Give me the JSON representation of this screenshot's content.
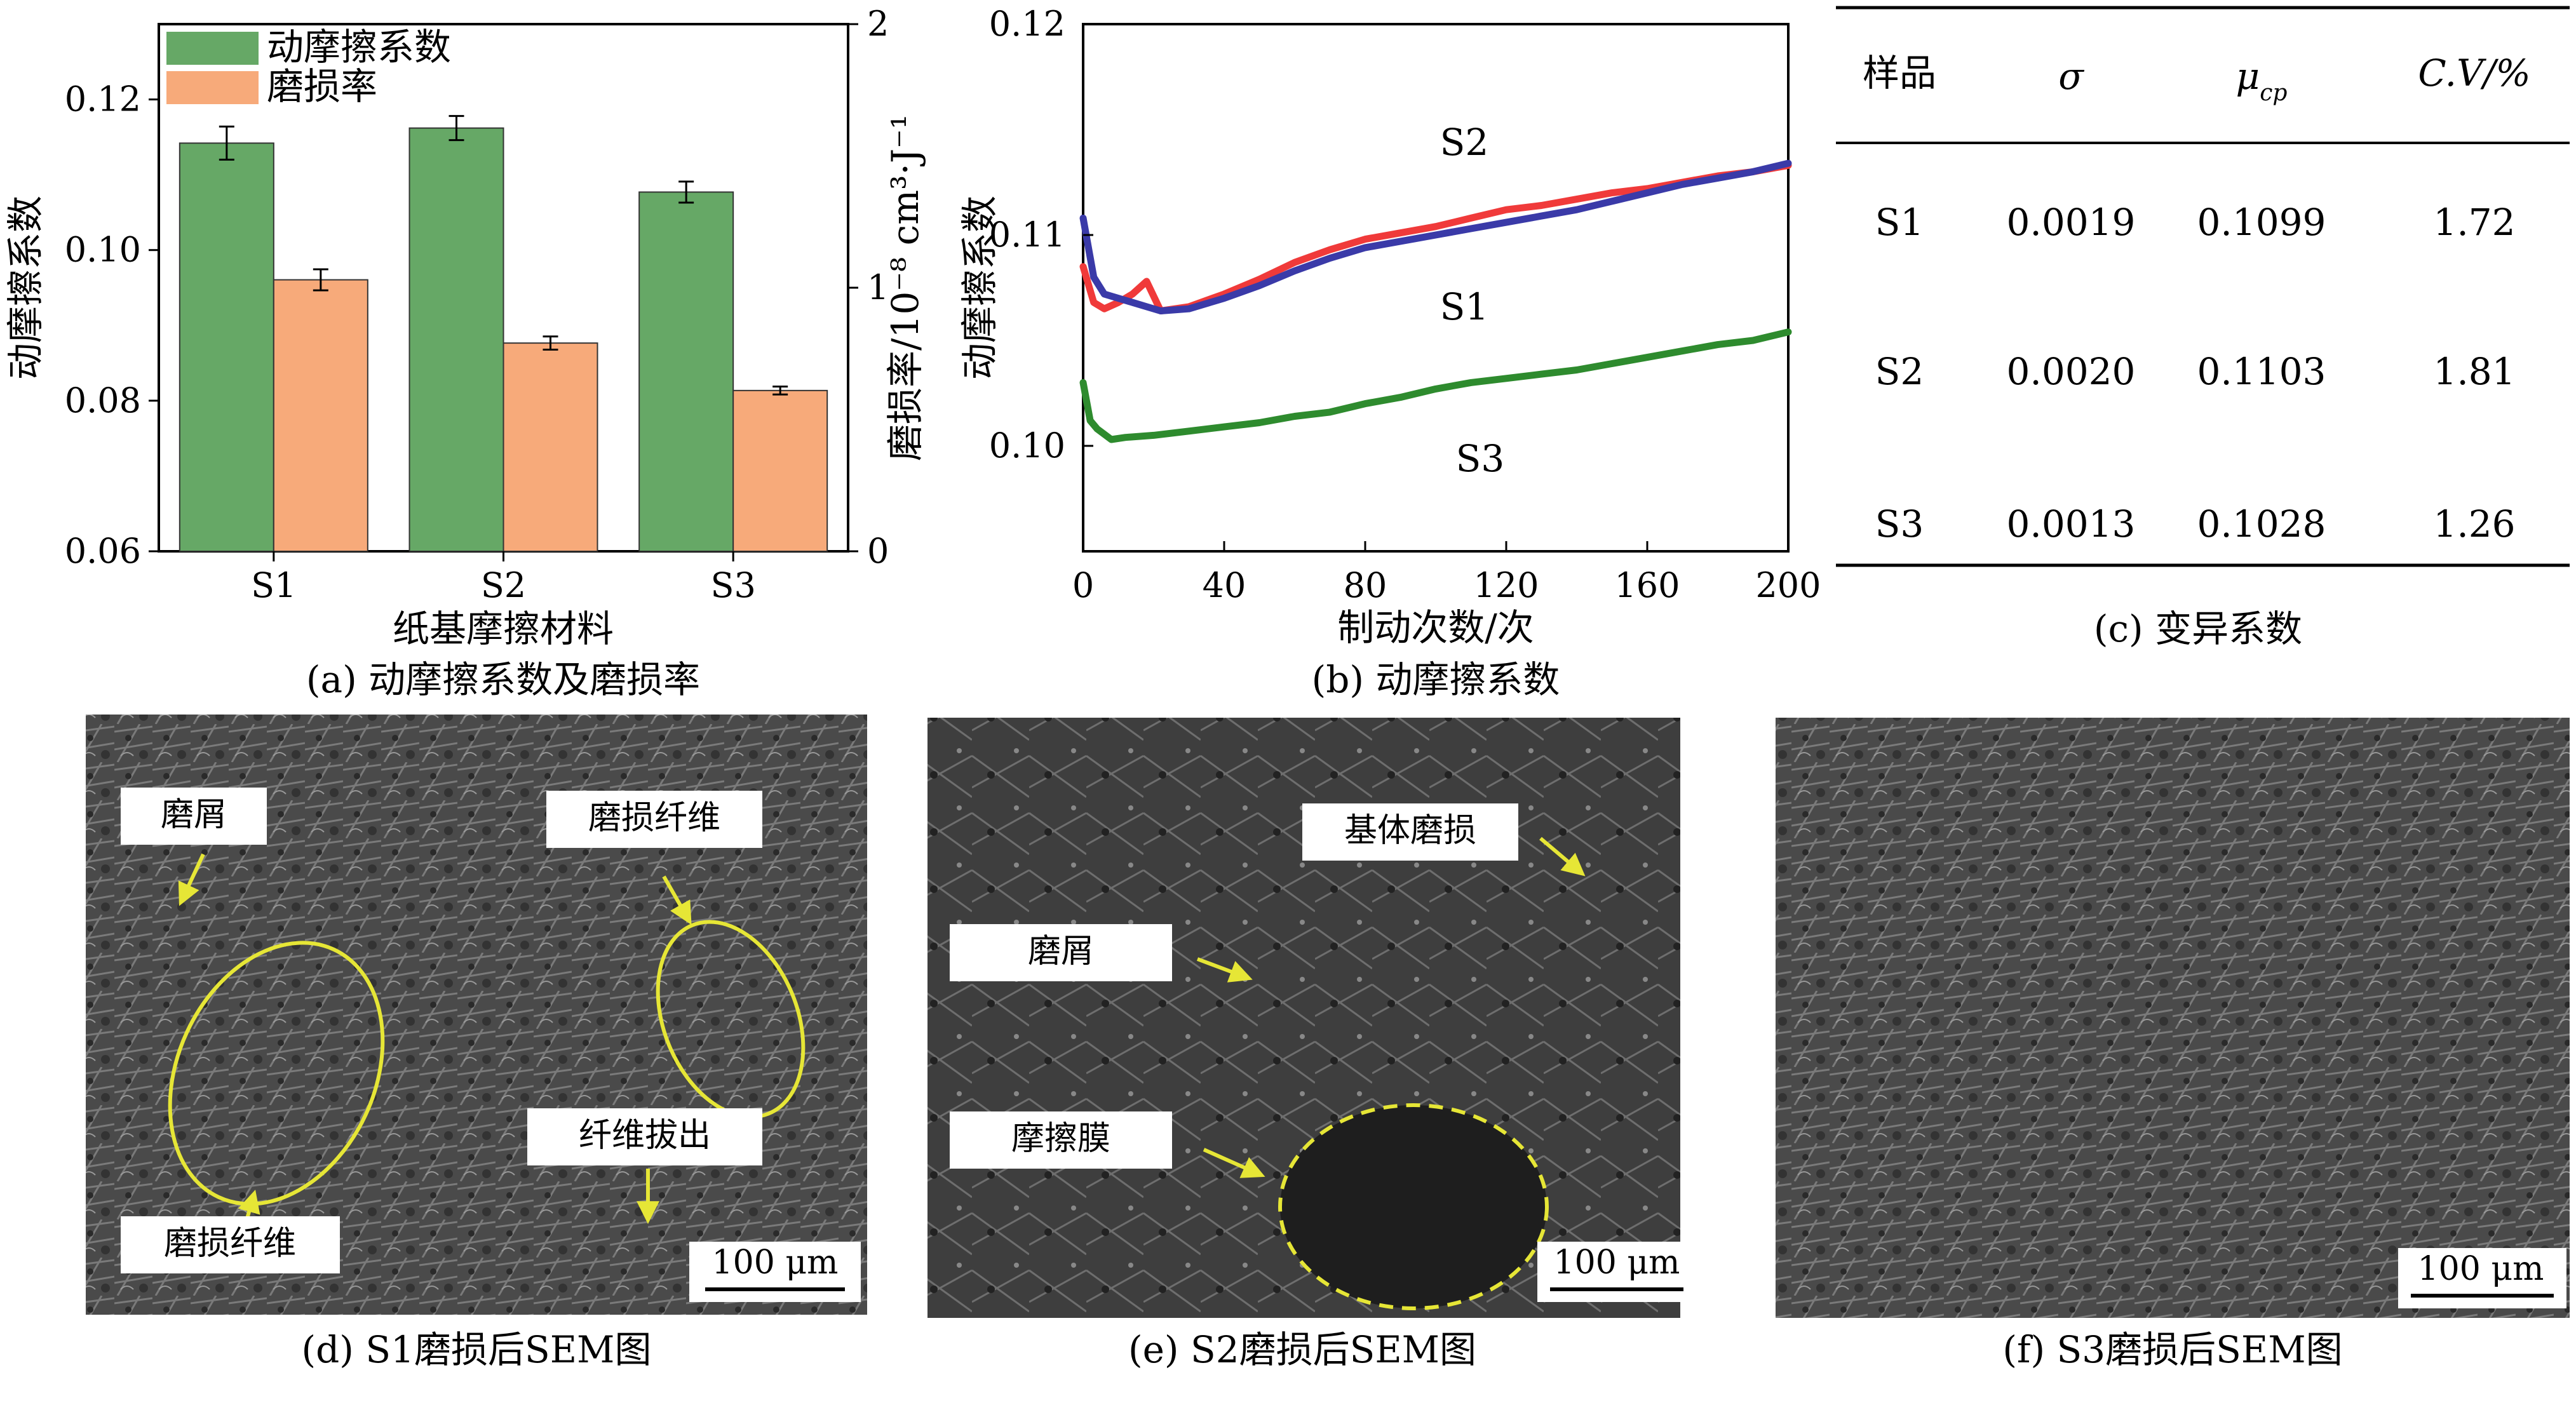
{
  "chart_data": [
    {
      "type": "bar",
      "panel": "a",
      "caption": "(a) 动摩擦系数及磨损率",
      "xlabel": "纸基摩擦材料",
      "ylabel": "动摩擦系数",
      "ylabel_right": "磨损率/10⁻⁸ cm³·J⁻¹",
      "categories": [
        "S1",
        "S2",
        "S3"
      ],
      "ylim": [
        0.06,
        0.13
      ],
      "ylim_right": [
        0,
        2
      ],
      "yticks": [
        "0.06",
        "0.08",
        "0.10",
        "0.12"
      ],
      "yticks_right": [
        "0",
        "1",
        "2"
      ],
      "legend_position": "top-left",
      "series": [
        {
          "name": "动摩擦系数",
          "axis": "left",
          "color": "#66a866",
          "values": [
            0.1142,
            0.1162,
            0.1077
          ],
          "errors": [
            0.0022,
            0.0016,
            0.0014
          ]
        },
        {
          "name": "磨损率",
          "axis": "right",
          "color": "#f7aa7a",
          "values": [
            1.03,
            0.79,
            0.61
          ],
          "errors": [
            0.04,
            0.025,
            0.015
          ]
        }
      ]
    },
    {
      "type": "line",
      "panel": "b",
      "caption": "(b) 动摩擦系数",
      "xlabel": "制动次数/次",
      "ylabel": "动摩擦系数",
      "xlim": [
        0,
        200
      ],
      "ylim": [
        0.095,
        0.12
      ],
      "xticks": [
        "0",
        "40",
        "80",
        "120",
        "160",
        "200"
      ],
      "yticks": [
        "0.10",
        "0.11",
        "0.12"
      ],
      "series": [
        {
          "name": "S2",
          "color": "#f03a3a",
          "x": [
            0,
            3,
            6,
            10,
            14,
            18,
            22,
            30,
            40,
            50,
            60,
            70,
            80,
            90,
            100,
            110,
            120,
            130,
            140,
            150,
            160,
            170,
            180,
            190,
            200
          ],
          "y": [
            0.1085,
            0.1068,
            0.1065,
            0.1068,
            0.1072,
            0.1078,
            0.1064,
            0.1066,
            0.1072,
            0.1079,
            0.1087,
            0.1093,
            0.1098,
            0.1101,
            0.1104,
            0.1108,
            0.1112,
            0.1114,
            0.1117,
            0.112,
            0.1122,
            0.1125,
            0.1128,
            0.113,
            0.1133
          ]
        },
        {
          "name": "S1",
          "color": "#3a3aa8",
          "x": [
            0,
            3,
            6,
            10,
            14,
            18,
            22,
            30,
            40,
            50,
            60,
            70,
            80,
            90,
            100,
            110,
            120,
            130,
            140,
            150,
            160,
            170,
            180,
            190,
            200
          ],
          "y": [
            0.1108,
            0.108,
            0.1072,
            0.107,
            0.1068,
            0.1066,
            0.1064,
            0.1065,
            0.107,
            0.1076,
            0.1083,
            0.1089,
            0.1094,
            0.1097,
            0.11,
            0.1103,
            0.1106,
            0.1109,
            0.1112,
            0.1116,
            0.112,
            0.1124,
            0.1127,
            0.113,
            0.1134
          ]
        },
        {
          "name": "S3",
          "color": "#2e8b2e",
          "x": [
            0,
            2,
            4,
            8,
            12,
            20,
            30,
            40,
            50,
            60,
            70,
            80,
            90,
            100,
            110,
            120,
            130,
            140,
            150,
            160,
            170,
            180,
            190,
            200
          ],
          "y": [
            0.103,
            0.1012,
            0.1008,
            0.1003,
            0.1004,
            0.1005,
            0.1007,
            0.1009,
            0.1011,
            0.1014,
            0.1016,
            0.102,
            0.1023,
            0.1027,
            0.103,
            0.1032,
            0.1034,
            0.1036,
            0.1039,
            0.1042,
            0.1045,
            0.1048,
            0.105,
            0.1054
          ]
        }
      ],
      "annotations": [
        "S2",
        "S1",
        "S3"
      ]
    },
    {
      "type": "table",
      "panel": "c",
      "caption": "(c) 变异系数",
      "columns": [
        "样品",
        "σ",
        "μ",
        "C.V/%"
      ],
      "column_sub": [
        "",
        "",
        "cp",
        ""
      ],
      "rows": [
        [
          "S1",
          "0.0019",
          "0.1099",
          "1.72"
        ],
        [
          "S2",
          "0.0020",
          "0.1103",
          "1.81"
        ],
        [
          "S3",
          "0.0013",
          "0.1028",
          "1.26"
        ]
      ]
    }
  ],
  "sem": [
    {
      "caption": "(d) S1磨损后SEM图",
      "scale": "100 μm",
      "labels": [
        "磨屑",
        "磨损纤维",
        "纤维拔出",
        "磨损纤维"
      ],
      "marker_color": "#e6e636"
    },
    {
      "caption": "(e) S2磨损后SEM图",
      "scale": "100 μm",
      "labels": [
        "基体磨损",
        "磨屑",
        "摩擦膜"
      ],
      "marker_color": "#e6e636"
    },
    {
      "caption": "(f) S3磨损后SEM图",
      "scale": "100 μm",
      "labels": []
    }
  ]
}
